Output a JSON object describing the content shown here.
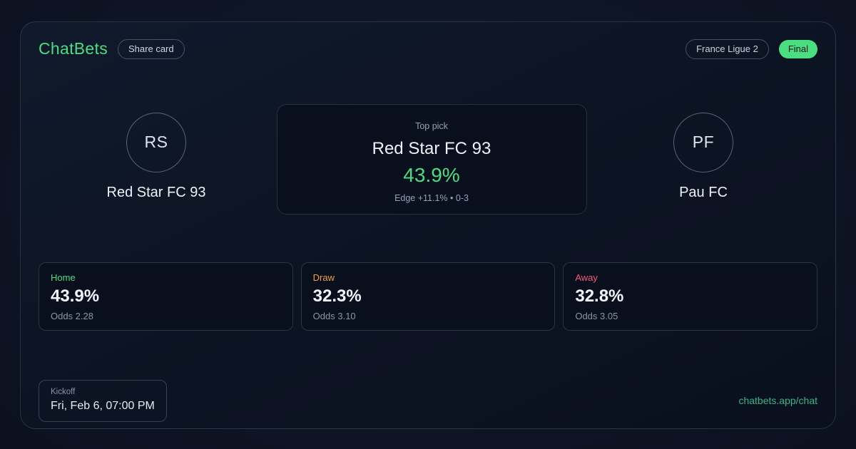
{
  "colors": {
    "accent_green": "#4ade80",
    "link_green": "#35b584",
    "draw_orange": "#f0a13a",
    "away_red": "#f65a74",
    "status_badge_bg": "#4ade80",
    "status_badge_text": "#0b1322"
  },
  "header": {
    "brand": "ChatBets",
    "share_button": "Share card",
    "league": "France Ligue 2",
    "status": "Final"
  },
  "match": {
    "home": {
      "initials": "RS",
      "name": "Red Star FC 93"
    },
    "away": {
      "initials": "PF",
      "name": "Pau FC"
    },
    "top_pick": {
      "label": "Top pick",
      "team": "Red Star FC 93",
      "probability": "43.9%",
      "meta": "Edge +11.1% • 0-3"
    }
  },
  "markets": [
    {
      "label": "Home",
      "probability": "43.9%",
      "odds": "Odds 2.28",
      "color": "#4ade80"
    },
    {
      "label": "Draw",
      "probability": "32.3%",
      "odds": "Odds 3.10",
      "color": "#f0a13a"
    },
    {
      "label": "Away",
      "probability": "32.8%",
      "odds": "Odds 3.05",
      "color": "#f65a74"
    }
  ],
  "footer": {
    "kickoff_label": "Kickoff",
    "kickoff_time": "Fri, Feb 6, 07:00 PM",
    "link": "chatbets.app/chat"
  }
}
